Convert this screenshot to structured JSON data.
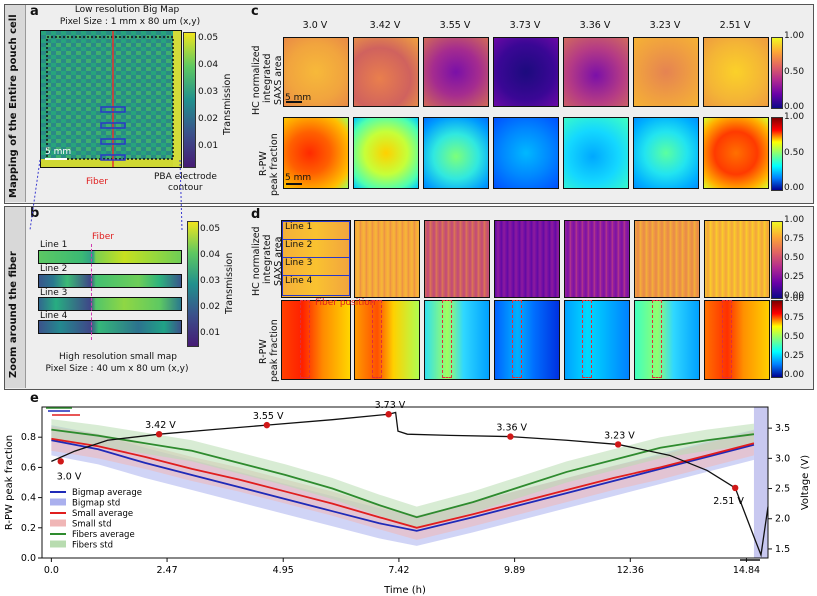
{
  "panel_a": {
    "letter": "a",
    "title_line1": "Low resolution Big Map",
    "title_line2": "Pixel Size : 1 mm x 80 um (x,y)",
    "side_label": "Mapping of the Entire pouch cell",
    "scale": "5 mm",
    "fiber_label": "Fiber",
    "pba_label_1": "PBA electrode",
    "pba_label_2": "contour",
    "cbar_label": "Transmission",
    "cbar_ticks": [
      "0.05",
      "0.04",
      "0.03",
      "0.02",
      "0.01"
    ]
  },
  "panel_b": {
    "letter": "b",
    "side_label": "Zoom around the fiber",
    "fiber_label": "Fiber",
    "lines": [
      "Line 1",
      "Line 2",
      "Line 3",
      "Line 4"
    ],
    "footer_line1": "High resolution small map",
    "footer_line2": "Pixel Size : 40 um x 80 um (x,y)",
    "cbar_label": "Transmission",
    "cbar_ticks": [
      "0.05",
      "0.04",
      "0.03",
      "0.02",
      "0.01"
    ]
  },
  "panel_c": {
    "letter": "c",
    "voltages": [
      "3.0 V",
      "3.42 V",
      "3.55 V",
      "3.73 V",
      "3.36 V",
      "3.23 V",
      "2.51 V"
    ],
    "row1_label_1": "HC normalized",
    "row1_label_2": "integrated",
    "row1_label_3": "SAXS area",
    "row2_label_1": "R-PW",
    "row2_label_2": "peak fraction",
    "scale": "5 mm",
    "cbar_ticks": [
      "1.00",
      "0.50",
      "0.00"
    ],
    "cbar2_ticks": [
      "1.00",
      "0.50",
      "0.00"
    ]
  },
  "panel_d": {
    "letter": "d",
    "lines": [
      "Line 1",
      "Line 2",
      "Line 3",
      "Line 4"
    ],
    "row1_label_1": "HC normalized",
    "row1_label_2": "integrated",
    "row1_label_3": "SAXS area",
    "row2_label_1": "R-PW",
    "row2_label_2": "peak fraction",
    "fiber_position": "Fiber position",
    "cbar_ticks": [
      "1.00",
      "0.75",
      "0.50",
      "0.25",
      "0.00"
    ],
    "cbar2_ticks": [
      "1.00",
      "0.75",
      "0.50",
      "0.25",
      "0.00"
    ]
  },
  "chart_data": {
    "letter": "e",
    "type": "line",
    "xlabel": "Time (h)",
    "ylabel": "R-PW peak fraction",
    "y2label": "Voltage (V)",
    "xticks": [
      "0.0",
      "2.47",
      "4.95",
      "7.42",
      "9.89",
      "12.36",
      "14.84"
    ],
    "xlim": [
      -0.2,
      15.3
    ],
    "ylim": [
      0.0,
      1.0
    ],
    "yticks": [
      "0.0",
      "0.2",
      "0.4",
      "0.6",
      "0.8"
    ],
    "y2lim": [
      1.35,
      3.85
    ],
    "y2ticks": [
      "1.5",
      "2.0",
      "2.5",
      "3.0",
      "3.5"
    ],
    "voltage_labels": [
      {
        "label": "3.0 V",
        "t": 0.2,
        "v": 2.95
      },
      {
        "label": "3.42 V",
        "t": 2.3,
        "v": 3.4
      },
      {
        "label": "3.55 V",
        "t": 4.6,
        "v": 3.55
      },
      {
        "label": "3.73 V",
        "t": 7.2,
        "v": 3.73
      },
      {
        "label": "3.36 V",
        "t": 9.8,
        "v": 3.36
      },
      {
        "label": "3.23 V",
        "t": 12.1,
        "v": 3.23
      },
      {
        "label": "2.51 V",
        "t": 14.6,
        "v": 2.51
      }
    ],
    "series": [
      {
        "name": "Bigmap average",
        "color": "#1f2ab8",
        "x": [
          0,
          1,
          2,
          3,
          4,
          5,
          6,
          7,
          7.8,
          9,
          10,
          11,
          12,
          13,
          14,
          15
        ],
        "y": [
          0.78,
          0.72,
          0.63,
          0.55,
          0.47,
          0.39,
          0.31,
          0.23,
          0.18,
          0.27,
          0.35,
          0.43,
          0.51,
          0.59,
          0.67,
          0.75
        ]
      },
      {
        "name": "Small average",
        "color": "#e01e1e",
        "x": [
          0,
          1,
          2,
          3,
          4,
          5,
          6,
          7,
          7.8,
          9,
          10,
          11,
          12,
          13,
          14,
          15
        ],
        "y": [
          0.79,
          0.74,
          0.67,
          0.59,
          0.52,
          0.44,
          0.36,
          0.27,
          0.2,
          0.29,
          0.37,
          0.45,
          0.53,
          0.6,
          0.68,
          0.76
        ]
      },
      {
        "name": "Fibers average",
        "color": "#2e8b2e",
        "x": [
          0,
          1,
          2,
          3,
          4,
          5,
          6,
          7,
          7.8,
          9,
          10,
          11,
          12,
          13,
          14,
          15
        ],
        "y": [
          0.85,
          0.81,
          0.76,
          0.71,
          0.63,
          0.55,
          0.46,
          0.35,
          0.27,
          0.37,
          0.47,
          0.57,
          0.65,
          0.73,
          0.78,
          0.82
        ]
      },
      {
        "name": "Voltage",
        "color": "#111111",
        "x": [
          0,
          0.5,
          1.2,
          2.3,
          3.5,
          4.6,
          6,
          7.2,
          7.35,
          7.4,
          7.6,
          8.5,
          9.8,
          11,
          12.1,
          13.2,
          14,
          14.6,
          15.0,
          15.15,
          15.3
        ],
        "y": [
          2.95,
          3.12,
          3.3,
          3.4,
          3.48,
          3.55,
          3.64,
          3.73,
          3.76,
          3.45,
          3.4,
          3.38,
          3.36,
          3.3,
          3.23,
          3.05,
          2.8,
          2.51,
          1.7,
          1.4,
          2.2
        ]
      }
    ],
    "bands": [
      {
        "name": "Bigmap std",
        "color": "#aab0ee"
      },
      {
        "name": "Small std",
        "color": "#f0b6b6"
      },
      {
        "name": "Fibers std",
        "color": "#b8dcb0"
      }
    ],
    "legend": [
      "Bigmap average",
      "Bigmap std",
      "Small average",
      "Small std",
      "Fibers average",
      "Fibers std"
    ]
  }
}
